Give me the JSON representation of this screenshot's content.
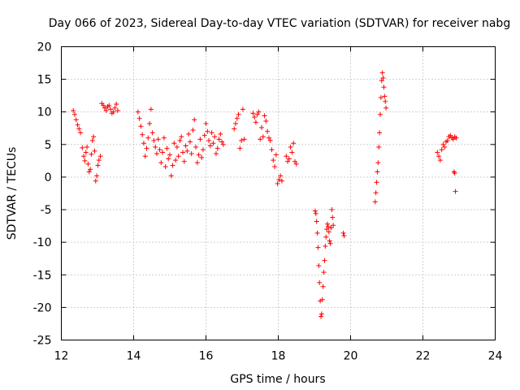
{
  "chart_data": {
    "type": "scatter",
    "title": "Day 066 of 2023, Sidereal Day-to-day VTEC variation (SDTVAR) for receiver nabg",
    "xlabel": "GPS time / hours",
    "ylabel": "SDTVAR / TECUs",
    "xlim": [
      12,
      24
    ],
    "ylim": [
      -25,
      20
    ],
    "xticks": [
      12,
      14,
      16,
      18,
      20,
      22,
      24
    ],
    "yticks": [
      -25,
      -20,
      -15,
      -10,
      -5,
      0,
      5,
      10,
      15,
      20
    ],
    "grid": true,
    "marker": "+",
    "color": "#ff0000",
    "series": [
      {
        "name": "SDTVAR",
        "x": [
          12.33,
          12.37,
          12.41,
          12.45,
          12.49,
          12.53,
          12.58,
          12.62,
          12.65,
          12.68,
          12.71,
          12.74,
          12.77,
          12.8,
          12.83,
          12.86,
          12.89,
          12.92,
          12.95,
          12.98,
          13.01,
          13.04,
          13.08,
          13.12,
          13.16,
          13.2,
          13.24,
          13.28,
          13.32,
          13.36,
          13.4,
          13.44,
          13.48,
          13.52,
          13.56,
          14.12,
          14.16,
          14.2,
          14.24,
          14.28,
          14.32,
          14.36,
          14.4,
          14.44,
          14.48,
          14.52,
          14.56,
          14.6,
          14.64,
          14.68,
          14.72,
          14.76,
          14.8,
          14.84,
          14.88,
          14.92,
          14.96,
          15.0,
          15.04,
          15.08,
          15.12,
          15.16,
          15.2,
          15.24,
          15.28,
          15.32,
          15.36,
          15.4,
          15.44,
          15.48,
          15.52,
          15.56,
          15.6,
          15.64,
          15.68,
          15.72,
          15.76,
          15.8,
          15.84,
          15.88,
          15.92,
          15.96,
          16.0,
          16.04,
          16.08,
          16.12,
          16.16,
          16.2,
          16.24,
          16.28,
          16.32,
          16.36,
          16.4,
          16.44,
          16.48,
          16.78,
          16.82,
          16.86,
          16.9,
          16.94,
          16.98,
          17.02,
          17.06,
          17.3,
          17.34,
          17.38,
          17.42,
          17.46,
          17.5,
          17.54,
          17.58,
          17.62,
          17.66,
          17.7,
          17.74,
          17.78,
          17.82,
          17.86,
          17.9,
          17.94,
          17.98,
          18.02,
          18.06,
          18.1,
          18.22,
          18.26,
          18.3,
          18.34,
          18.38,
          18.42,
          18.46,
          18.5,
          19.02,
          19.04,
          19.06,
          19.08,
          19.1,
          19.12,
          19.14,
          19.16,
          19.18,
          19.2,
          19.22,
          19.24,
          19.26,
          19.28,
          19.3,
          19.32,
          19.34,
          19.36,
          19.38,
          19.4,
          19.42,
          19.44,
          19.46,
          19.48,
          19.5,
          19.52,
          19.8,
          19.82,
          20.68,
          20.7,
          20.72,
          20.74,
          20.76,
          20.78,
          20.8,
          20.82,
          20.84,
          20.86,
          20.88,
          20.9,
          20.92,
          20.94,
          20.96,
          20.98,
          22.4,
          22.44,
          22.48,
          22.52,
          22.56,
          22.6,
          22.64,
          22.68,
          22.72,
          22.76,
          22.8,
          22.84,
          22.88,
          22.92,
          22.86,
          22.88,
          22.9
        ],
        "y": [
          10.2,
          9.6,
          8.8,
          8.0,
          7.4,
          6.8,
          4.5,
          3.2,
          2.5,
          3.8,
          4.6,
          2.0,
          0.8,
          1.2,
          3.5,
          5.6,
          6.2,
          4.0,
          -0.6,
          0.2,
          1.8,
          2.6,
          3.2,
          11.3,
          11.0,
          10.6,
          10.2,
          10.8,
          11.0,
          10.4,
          9.8,
          10.0,
          10.6,
          11.2,
          10.2,
          10.0,
          9.0,
          7.8,
          6.5,
          5.2,
          3.2,
          4.4,
          6.0,
          8.2,
          10.4,
          6.8,
          5.6,
          4.6,
          3.6,
          5.8,
          4.2,
          2.2,
          3.8,
          6.0,
          1.6,
          4.4,
          2.8,
          3.4,
          0.2,
          1.8,
          5.2,
          2.6,
          4.6,
          3.2,
          5.6,
          6.2,
          3.8,
          2.4,
          4.8,
          4.0,
          6.6,
          5.4,
          3.6,
          7.2,
          8.8,
          4.6,
          2.2,
          3.4,
          5.8,
          3.0,
          4.2,
          6.4,
          8.2,
          7.0,
          5.6,
          4.8,
          6.8,
          5.2,
          6.2,
          3.6,
          4.4,
          5.8,
          6.6,
          5.4,
          5.0,
          7.4,
          8.2,
          9.0,
          9.6,
          4.4,
          5.6,
          10.4,
          5.8,
          9.8,
          9.2,
          8.4,
          9.6,
          10.0,
          5.8,
          7.6,
          6.2,
          9.4,
          8.6,
          7.0,
          6.0,
          5.6,
          4.2,
          2.6,
          1.6,
          3.4,
          -1.0,
          -0.4,
          0.2,
          -0.6,
          3.2,
          2.4,
          2.8,
          4.6,
          3.8,
          5.2,
          2.4,
          2.0,
          -5.2,
          -5.6,
          -6.8,
          -8.6,
          -10.8,
          -13.6,
          -16.2,
          -19.0,
          -21.4,
          -21.0,
          -18.8,
          -16.8,
          -14.6,
          -12.8,
          -10.6,
          -9.2,
          -8.0,
          -7.2,
          -7.6,
          -8.4,
          -9.8,
          -10.2,
          -7.8,
          -5.0,
          -6.2,
          -7.4,
          -8.6,
          -9.0,
          -3.8,
          -2.4,
          -0.8,
          0.8,
          2.2,
          4.6,
          6.8,
          9.6,
          12.2,
          14.8,
          16.0,
          15.2,
          13.8,
          12.4,
          11.6,
          10.6,
          3.8,
          3.2,
          2.6,
          4.2,
          5.0,
          4.6,
          5.4,
          5.6,
          6.2,
          6.4,
          6.0,
          5.8,
          6.2,
          6.0,
          0.8,
          0.6,
          -2.2
        ]
      }
    ]
  }
}
